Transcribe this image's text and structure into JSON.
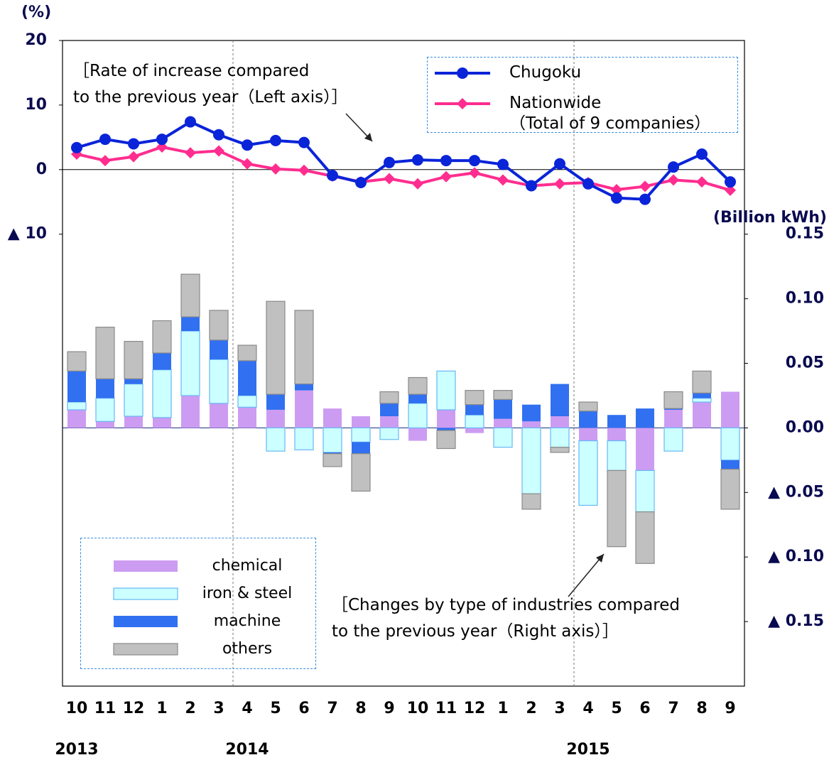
{
  "chart_data": {
    "type": "combo",
    "categories": [
      "10",
      "11",
      "12",
      "1",
      "2",
      "3",
      "4",
      "5",
      "6",
      "7",
      "8",
      "9",
      "10",
      "11",
      "12",
      "1",
      "2",
      "3",
      "4",
      "5",
      "6",
      "7",
      "8",
      "9"
    ],
    "years": [
      {
        "label": "2013",
        "category": 0
      },
      {
        "label": "2014",
        "category": 6
      },
      {
        "label": "2015",
        "category": 18
      }
    ],
    "y_label": "(%)",
    "y2_label": "(Billion kWh)",
    "ylim": [
      -80,
      20
    ],
    "yticks": [
      20,
      10,
      0,
      {
        "value": -10,
        "label": "▲ 10"
      }
    ],
    "y2lim": [
      -0.2,
      0.3
    ],
    "y2ticks": [
      0.15,
      {
        "value": 0.1,
        "label": "0.10"
      },
      0.05,
      {
        "value": 0,
        "label": "0.00"
      },
      {
        "value": -0.05,
        "label": "▲ 0.05"
      },
      {
        "value": -0.1,
        "label": "▲ 0.10"
      },
      {
        "value": -0.15,
        "label": "▲ 0.15"
      }
    ],
    "annotations": [
      "［Rate of increase compared\nto the previous year（Left axis）］",
      "［Changes by type of industries compared\nto the previous year（Right axis）］"
    ],
    "line_legend_corner": "top-right",
    "bar_legend_corner": "bottom-left",
    "series": [
      {
        "name": "Chugoku",
        "type": "line",
        "marker": "circle",
        "color": "#0a24d8",
        "values": [
          3.4,
          4.7,
          4.0,
          4.7,
          7.4,
          5.4,
          3.8,
          4.5,
          4.2,
          -0.9,
          -2.0,
          1.1,
          1.5,
          1.4,
          1.4,
          0.8,
          -2.5,
          0.9,
          -2.2,
          -4.4,
          -4.6,
          0.4,
          2.4,
          -1.9
        ]
      },
      {
        "name": "Nationwide\n（Total of 9 companies）",
        "type": "line",
        "marker": "diamond",
        "color": "#ff2d8f",
        "values": [
          2.4,
          1.4,
          2.0,
          3.5,
          2.6,
          2.9,
          0.9,
          0.1,
          -0.1,
          -1.0,
          -1.9,
          -1.4,
          -2.2,
          -1.1,
          -0.5,
          -1.6,
          -2.5,
          -2.2,
          -2.0,
          -3.1,
          -2.6,
          -1.6,
          -1.9,
          -3.2
        ]
      },
      {
        "name": "chemical",
        "type": "bar",
        "axis": "y2",
        "color": "#cc9cf2",
        "values": [
          0.014,
          0.005,
          0.009,
          0.008,
          0.025,
          0.019,
          0.016,
          0.014,
          0.029,
          0.015,
          0.009,
          0.009,
          -0.01,
          0.014,
          -0.004,
          0.007,
          0.005,
          0.009,
          -0.01,
          -0.01,
          -0.033,
          0.014,
          0.02,
          0.028
        ]
      },
      {
        "name": "iron & steel",
        "type": "bar",
        "axis": "y2",
        "color": "#ccffff",
        "border": "#66b8f5",
        "values": [
          0.006,
          0.018,
          0.025,
          0.037,
          0.05,
          0.034,
          0.009,
          -0.018,
          -0.017,
          -0.019,
          -0.011,
          -0.009,
          0.019,
          0.03,
          0.01,
          -0.015,
          -0.051,
          -0.015,
          -0.05,
          -0.023,
          -0.032,
          -0.018,
          0.003,
          -0.025
        ]
      },
      {
        "name": "machine",
        "type": "bar",
        "axis": "y2",
        "color": "#3170f0",
        "values": [
          0.024,
          0.015,
          0.004,
          0.013,
          0.011,
          0.015,
          0.027,
          0.012,
          0.005,
          -0.001,
          -0.009,
          0.01,
          0.007,
          -0.002,
          0.008,
          0.015,
          0.013,
          0.025,
          0.013,
          0.01,
          0.015,
          0.001,
          0.004,
          -0.007
        ]
      },
      {
        "name": "others",
        "type": "bar",
        "axis": "y2",
        "color": "#c0c0c0",
        "border": "#8a8a8a",
        "values": [
          0.015,
          0.04,
          0.029,
          0.025,
          0.033,
          0.023,
          0.012,
          0.072,
          0.057,
          -0.01,
          -0.029,
          0.009,
          0.013,
          -0.014,
          0.011,
          0.007,
          -0.012,
          -0.004,
          0.007,
          -0.059,
          -0.04,
          0.013,
          0.017,
          -0.031
        ]
      }
    ]
  }
}
